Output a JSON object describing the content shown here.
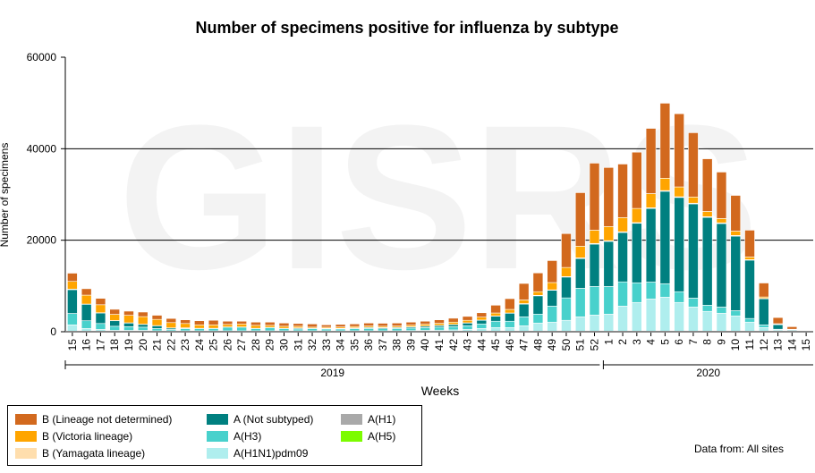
{
  "chart_data": {
    "type": "bar",
    "stacked": true,
    "title": "Number of specimens positive for influenza by subtype",
    "xlabel": "Weeks",
    "ylabel": "Number of specimens",
    "ylim": [
      0,
      60000
    ],
    "yticks": [
      0,
      20000,
      40000,
      60000
    ],
    "grid": "horizontal",
    "watermark": "GISRS",
    "year_groups": [
      {
        "label": "2019",
        "weeks": 38
      },
      {
        "label": "2020",
        "weeks": 15
      }
    ],
    "categories": [
      "15",
      "16",
      "17",
      "18",
      "19",
      "20",
      "21",
      "22",
      "23",
      "24",
      "25",
      "26",
      "27",
      "28",
      "29",
      "30",
      "31",
      "32",
      "33",
      "34",
      "35",
      "36",
      "37",
      "38",
      "39",
      "40",
      "41",
      "42",
      "43",
      "44",
      "45",
      "46",
      "47",
      "48",
      "49",
      "50",
      "51",
      "52",
      "1",
      "2",
      "3",
      "4",
      "5",
      "6",
      "7",
      "8",
      "9",
      "10",
      "11",
      "12",
      "13",
      "14",
      "15"
    ],
    "series": [
      {
        "name": "A(H1N1)pdm09",
        "color": "#AFEEEE",
        "values": [
          1500,
          700,
          500,
          300,
          300,
          300,
          200,
          200,
          200,
          200,
          200,
          200,
          200,
          200,
          200,
          200,
          200,
          200,
          200,
          200,
          200,
          200,
          200,
          200,
          250,
          300,
          350,
          400,
          500,
          700,
          900,
          900,
          1300,
          1900,
          2100,
          2500,
          3250,
          3650,
          3850,
          5600,
          6400,
          7150,
          7550,
          6400,
          5400,
          4450,
          4050,
          3450,
          2100,
          900,
          400,
          150,
          0
        ]
      },
      {
        "name": "A(H3)",
        "color": "#48D1CC",
        "values": [
          2500,
          1700,
          1300,
          900,
          800,
          700,
          500,
          300,
          500,
          500,
          500,
          800,
          800,
          500,
          700,
          500,
          400,
          500,
          400,
          400,
          450,
          500,
          450,
          500,
          550,
          600,
          650,
          700,
          800,
          1000,
          1400,
          1400,
          1950,
          1950,
          3500,
          4900,
          6250,
          6250,
          6050,
          5300,
          4300,
          3700,
          2950,
          2350,
          1950,
          1350,
          1350,
          1150,
          800,
          600,
          150,
          150,
          0
        ]
      },
      {
        "name": "A(H1)",
        "color": "#A9A9A9",
        "values": [
          0,
          0,
          0,
          0,
          0,
          0,
          0,
          0,
          0,
          0,
          0,
          0,
          0,
          0,
          0,
          0,
          0,
          0,
          0,
          0,
          0,
          0,
          0,
          0,
          0,
          0,
          0,
          0,
          0,
          0,
          0,
          0,
          0,
          0,
          0,
          0,
          0,
          0,
          0,
          0,
          0,
          0,
          0,
          0,
          0,
          0,
          0,
          0,
          0,
          0,
          0,
          0,
          0
        ]
      },
      {
        "name": "A(H5)",
        "color": "#7CFC00",
        "values": [
          0,
          0,
          0,
          0,
          0,
          0,
          0,
          0,
          0,
          0,
          0,
          0,
          0,
          0,
          0,
          0,
          0,
          0,
          0,
          0,
          0,
          0,
          0,
          0,
          0,
          0,
          0,
          0,
          0,
          0,
          0,
          0,
          0,
          0,
          0,
          0,
          0,
          0,
          0,
          0,
          0,
          0,
          0,
          0,
          0,
          0,
          0,
          0,
          0,
          0,
          0,
          0,
          0
        ]
      },
      {
        "name": "A (Not subtyped)",
        "color": "#008080",
        "values": [
          5200,
          3600,
          2300,
          1200,
          800,
          600,
          600,
          300,
          100,
          0,
          0,
          0,
          0,
          0,
          0,
          0,
          200,
          0,
          100,
          100,
          150,
          200,
          200,
          200,
          250,
          300,
          350,
          450,
          600,
          800,
          1100,
          1750,
          2800,
          4000,
          3450,
          4550,
          6500,
          9250,
          9850,
          10800,
          13000,
          16100,
          20200,
          20600,
          20600,
          19200,
          18250,
          16300,
          12750,
          5700,
          1000,
          150,
          0
        ]
      },
      {
        "name": "B (Yamagata lineage)",
        "color": "#FFDEAD",
        "values": [
          100,
          50,
          50,
          50,
          50,
          50,
          50,
          50,
          50,
          50,
          50,
          50,
          50,
          50,
          50,
          50,
          50,
          50,
          50,
          50,
          50,
          50,
          50,
          50,
          50,
          50,
          50,
          50,
          50,
          50,
          50,
          50,
          100,
          100,
          100,
          100,
          150,
          150,
          150,
          150,
          150,
          150,
          150,
          150,
          150,
          150,
          150,
          150,
          100,
          100,
          50,
          0,
          0
        ]
      },
      {
        "name": "B (Victoria lineage)",
        "color": "#FFA500",
        "values": [
          1700,
          1950,
          1750,
          1350,
          1650,
          1650,
          1350,
          1150,
          950,
          750,
          750,
          550,
          650,
          650,
          450,
          450,
          350,
          250,
          250,
          300,
          300,
          300,
          300,
          300,
          350,
          400,
          450,
          500,
          550,
          650,
          650,
          780,
          800,
          800,
          1600,
          2000,
          2550,
          2900,
          3100,
          3100,
          3100,
          3100,
          2700,
          2150,
          1350,
          1150,
          950,
          950,
          600,
          300,
          150,
          100,
          0
        ]
      },
      {
        "name": "B (Lineage not determined)",
        "color": "#D2691E",
        "values": [
          1800,
          1400,
          1400,
          1100,
          900,
          1000,
          900,
          900,
          800,
          900,
          1000,
          700,
          600,
          700,
          700,
          700,
          600,
          700,
          500,
          550,
          550,
          650,
          650,
          650,
          650,
          650,
          750,
          850,
          850,
          950,
          1700,
          2350,
          3600,
          4100,
          4800,
          7400,
          11700,
          14650,
          12900,
          11700,
          12300,
          14250,
          16400,
          16000,
          14050,
          11500,
          10150,
          7800,
          5850,
          3050,
          1350,
          550,
          0
        ]
      }
    ],
    "stack_order": [
      "A(H1N1)pdm09",
      "A(H3)",
      "A(H1)",
      "A(H5)",
      "A (Not subtyped)",
      "B (Yamagata lineage)",
      "B (Victoria lineage)",
      "B (Lineage not determined)"
    ]
  },
  "legend": [
    {
      "label": "B (Lineage not determined)",
      "color": "#D2691E"
    },
    {
      "label": "B (Victoria lineage)",
      "color": "#FFA500"
    },
    {
      "label": "B (Yamagata lineage)",
      "color": "#FFDEAD"
    },
    {
      "label": "A (Not subtyped)",
      "color": "#008080"
    },
    {
      "label": "A(H3)",
      "color": "#48D1CC"
    },
    {
      "label": "A(H1N1)pdm09",
      "color": "#AFEEEE"
    },
    {
      "label": "A(H1)",
      "color": "#A9A9A9"
    },
    {
      "label": "A(H5)",
      "color": "#7CFC00"
    }
  ],
  "source": "Data from: All sites"
}
